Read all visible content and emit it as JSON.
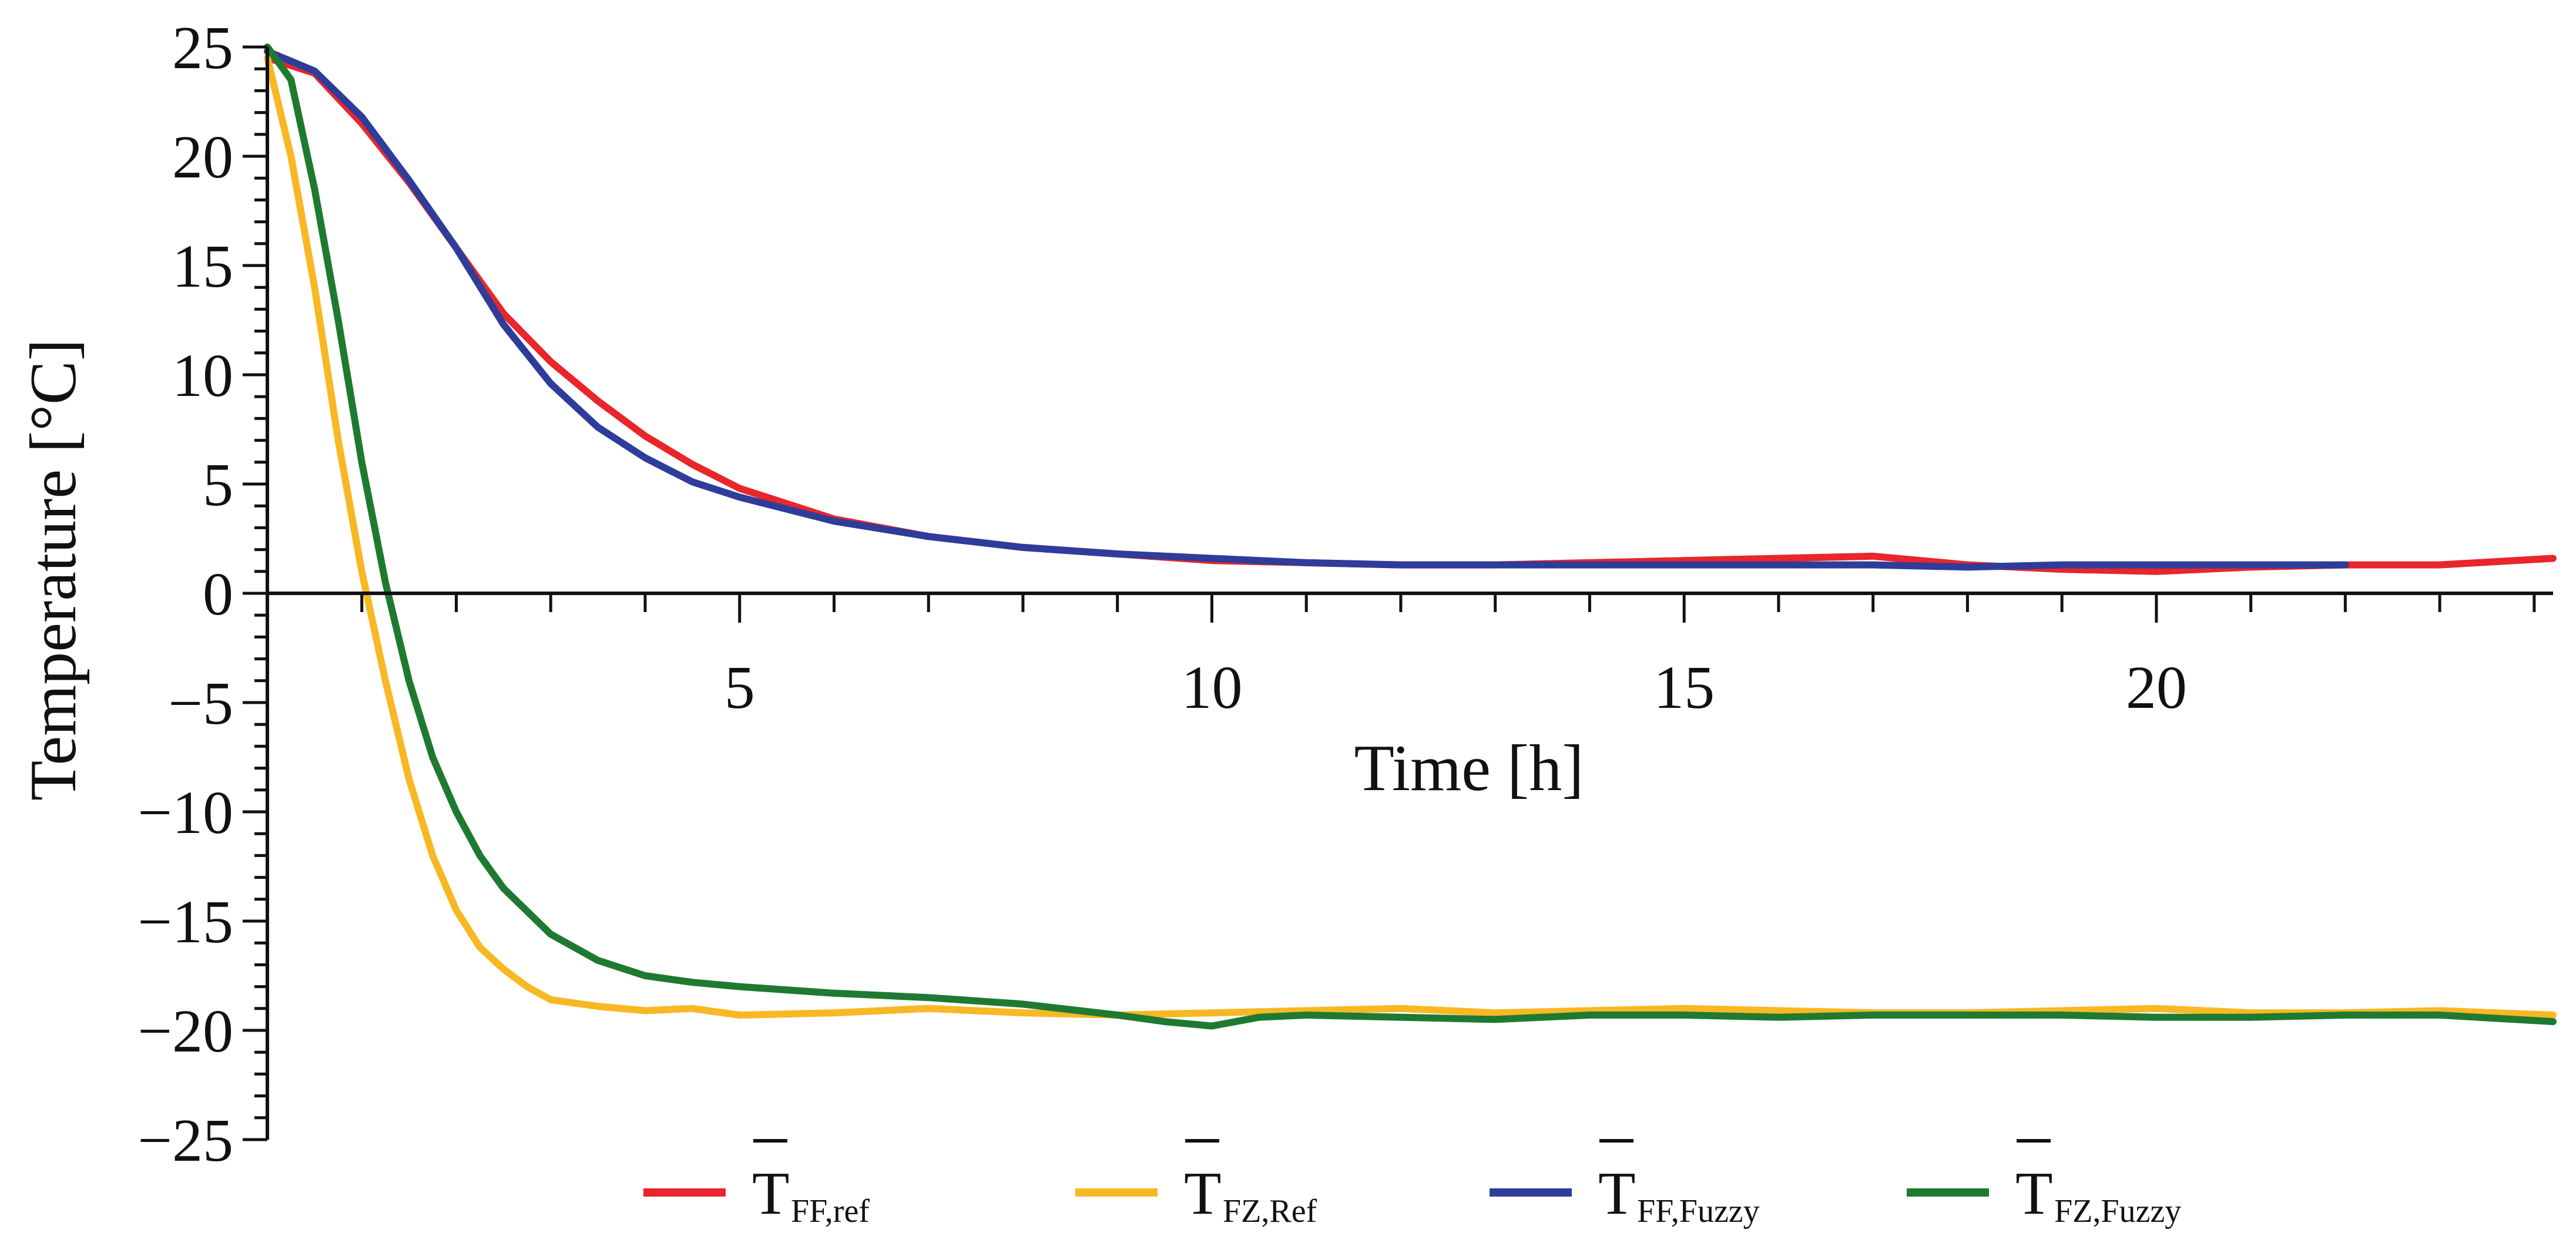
{
  "chart_data": {
    "type": "line",
    "title": "",
    "xlabel": "Time [h]",
    "ylabel": "Temperature [°C]",
    "xlim": [
      0,
      24.2
    ],
    "ylim": [
      -25,
      25
    ],
    "x_ticks": [
      5,
      10,
      15,
      20
    ],
    "x_tick_labels": [
      "5",
      "10",
      "15",
      "20"
    ],
    "y_ticks": [
      25,
      20,
      15,
      10,
      5,
      0,
      -5,
      -10,
      -15,
      -20,
      -25
    ],
    "y_tick_labels": [
      "25",
      "20",
      "15",
      "10",
      "5",
      "0",
      "−5",
      "−10",
      "−15",
      "−20",
      "−25"
    ],
    "grid": false,
    "legend_position": "bottom",
    "series": [
      {
        "name": "T̄FF,ref",
        "legend_main": "T",
        "legend_sub": "FF,ref",
        "color": "#e8262b",
        "x": [
          0,
          0.5,
          1,
          1.5,
          2,
          2.5,
          3,
          3.5,
          4,
          4.5,
          5,
          6,
          7,
          8,
          9,
          10,
          11,
          12,
          13,
          14,
          15,
          16,
          17,
          18,
          19,
          20,
          21,
          22,
          23,
          24.2
        ],
        "y": [
          24.5,
          23.8,
          21.5,
          18.8,
          15.8,
          12.8,
          10.6,
          8.8,
          7.2,
          5.9,
          4.8,
          3.4,
          2.6,
          2.1,
          1.8,
          1.5,
          1.4,
          1.3,
          1.3,
          1.4,
          1.5,
          1.6,
          1.7,
          1.3,
          1.1,
          1.0,
          1.2,
          1.3,
          1.3,
          1.6
        ]
      },
      {
        "name": "T̄FZ,Ref",
        "legend_main": "T",
        "legend_sub": "FZ,Ref",
        "color": "#f7b823",
        "x": [
          0,
          0.25,
          0.5,
          0.75,
          1,
          1.25,
          1.5,
          1.75,
          2,
          2.25,
          2.5,
          2.75,
          3,
          3.5,
          4,
          4.5,
          5,
          6,
          7,
          8,
          9,
          10,
          11,
          12,
          13,
          14,
          15,
          16,
          17,
          18,
          19,
          20,
          21,
          22,
          23,
          24.2
        ],
        "y": [
          24.5,
          20,
          14,
          7,
          1,
          -4,
          -8.5,
          -12,
          -14.5,
          -16.2,
          -17.2,
          -18.0,
          -18.6,
          -18.9,
          -19.1,
          -19.0,
          -19.3,
          -19.2,
          -19.0,
          -19.2,
          -19.3,
          -19.2,
          -19.1,
          -19.0,
          -19.2,
          -19.1,
          -19.0,
          -19.1,
          -19.2,
          -19.2,
          -19.1,
          -19.0,
          -19.2,
          -19.2,
          -19.1,
          -19.3
        ]
      },
      {
        "name": "T̄FF,Fuzzy",
        "legend_main": "T",
        "legend_sub": "FF,Fuzzy",
        "color": "#2e3c9a",
        "x": [
          0,
          0.5,
          1,
          1.5,
          2,
          2.5,
          3,
          3.5,
          4,
          4.5,
          5,
          6,
          7,
          8,
          9,
          10,
          11,
          12,
          13,
          14,
          15,
          16,
          17,
          18,
          19,
          20,
          21,
          22
        ],
        "y": [
          24.8,
          23.9,
          21.8,
          18.9,
          15.8,
          12.3,
          9.6,
          7.6,
          6.2,
          5.1,
          4.4,
          3.3,
          2.6,
          2.1,
          1.8,
          1.6,
          1.4,
          1.3,
          1.3,
          1.3,
          1.3,
          1.3,
          1.3,
          1.2,
          1.3,
          1.3,
          1.3,
          1.3
        ]
      },
      {
        "name": "T̄FZ,Fuzzy",
        "legend_main": "T",
        "legend_sub": "FZ,Fuzzy",
        "color": "#1f7a31",
        "x": [
          0,
          0.25,
          0.5,
          0.75,
          1,
          1.25,
          1.5,
          1.75,
          2,
          2.25,
          2.5,
          3,
          3.5,
          4,
          4.5,
          5,
          6,
          7,
          8,
          9,
          9.5,
          10,
          10.5,
          11,
          12,
          13,
          14,
          15,
          16,
          17,
          18,
          19,
          20,
          21,
          22,
          23,
          24.2
        ],
        "y": [
          25.0,
          23.5,
          18.5,
          12.5,
          6,
          0.5,
          -4,
          -7.5,
          -10,
          -12,
          -13.5,
          -15.6,
          -16.8,
          -17.5,
          -17.8,
          -18.0,
          -18.3,
          -18.5,
          -18.8,
          -19.3,
          -19.6,
          -19.8,
          -19.4,
          -19.3,
          -19.4,
          -19.5,
          -19.3,
          -19.3,
          -19.4,
          -19.3,
          -19.3,
          -19.3,
          -19.4,
          -19.4,
          -19.3,
          -19.3,
          -19.6
        ]
      }
    ]
  }
}
